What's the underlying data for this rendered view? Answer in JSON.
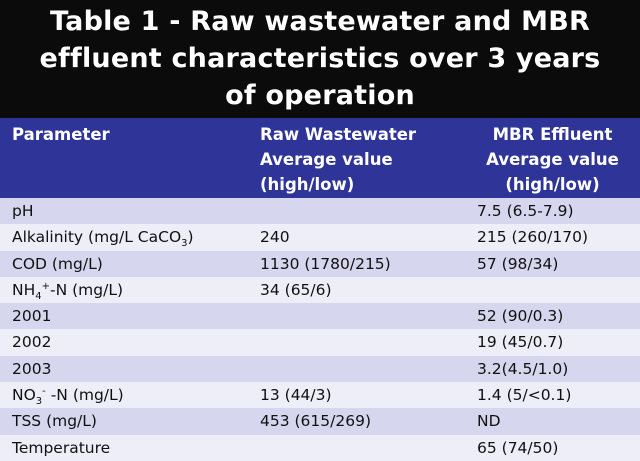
{
  "title": {
    "line1": "Table 1 - Raw wastewater and MBR",
    "line2": "effluent characteristics over 3 years",
    "line3": "of operation"
  },
  "headers": {
    "parameter": "Parameter",
    "raw_line1": "Raw Wastewater",
    "raw_line2": "Average value",
    "raw_line3": "(high/low)",
    "mbr_line1": "MBR Effluent",
    "mbr_line2": "Average value",
    "mbr_line3": "(high/low)"
  },
  "rows": [
    {
      "param": "pH",
      "raw": "",
      "mbr": "7.5 (6.5-7.9)"
    },
    {
      "param_pre": "Alkalinity (mg/L CaCO",
      "param_sub": "3",
      "param_post": ")",
      "raw": "240",
      "mbr": "215 (260/170)"
    },
    {
      "param": "COD (mg/L)",
      "raw": "1130 (1780/215)",
      "mbr": "57 (98/34)"
    },
    {
      "param_pre": "NH",
      "param_sub": "4",
      "param_sup": "+",
      "param_post": "-N (mg/L)",
      "raw": "34 (65/6)",
      "mbr": ""
    },
    {
      "param": "2001",
      "raw": "",
      "mbr": "52 (90/0.3)"
    },
    {
      "param": "2002",
      "raw": "",
      "mbr": "19 (45/0.7)"
    },
    {
      "param": "2003",
      "raw": "",
      "mbr": "3.2(4.5/1.0)"
    },
    {
      "param_pre": "NO",
      "param_sub": "3",
      "param_sup": "-",
      "param_post": " -N (mg/L)",
      "raw": "13 (44/3)",
      "mbr": "1.4 (5/<0.1)"
    },
    {
      "param": "TSS (mg/L)",
      "raw": "453 (615/269)",
      "mbr": "ND"
    },
    {
      "param": "Temperature",
      "raw": "",
      "mbr": "65 (74/50)"
    }
  ],
  "colors": {
    "title_bg": "#0b0b0b",
    "header_bg": "#2f3598",
    "row_odd": "#d6d7ee",
    "row_even": "#eeeef8"
  }
}
